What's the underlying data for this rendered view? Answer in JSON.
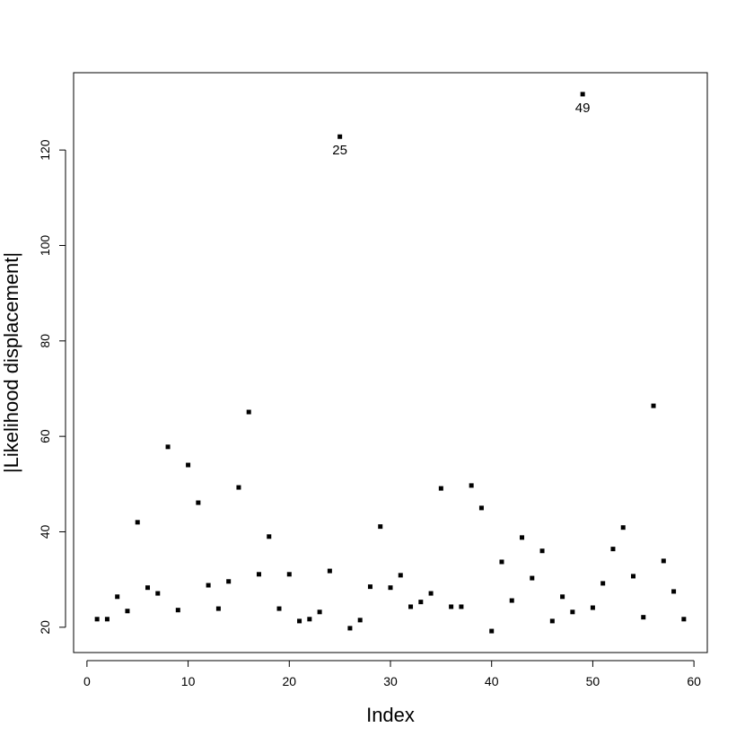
{
  "chart_data": {
    "type": "scatter",
    "xlabel": "Index",
    "ylabel": "|Likelihood displacement|",
    "x": [
      1,
      2,
      3,
      4,
      5,
      6,
      7,
      8,
      9,
      10,
      11,
      12,
      13,
      14,
      15,
      16,
      17,
      18,
      19,
      20,
      21,
      22,
      23,
      24,
      25,
      26,
      27,
      28,
      29,
      30,
      31,
      32,
      33,
      34,
      35,
      36,
      37,
      38,
      39,
      40,
      41,
      42,
      43,
      44,
      45,
      46,
      47,
      48,
      49,
      50,
      51,
      52,
      53,
      54,
      55,
      56,
      57,
      58,
      59
    ],
    "values": [
      21.7,
      21.7,
      26.4,
      23.4,
      42.0,
      28.3,
      27.1,
      57.8,
      23.6,
      54.0,
      46.1,
      28.8,
      23.9,
      29.6,
      49.3,
      65.1,
      31.1,
      39.0,
      23.9,
      31.1,
      21.3,
      21.7,
      23.2,
      31.8,
      122.8,
      19.8,
      21.5,
      28.5,
      41.1,
      28.3,
      30.9,
      24.3,
      25.3,
      27.1,
      49.1,
      24.3,
      24.3,
      49.7,
      45.0,
      19.2,
      33.7,
      25.6,
      38.8,
      30.3,
      36.0,
      21.3,
      26.4,
      23.2,
      131.7,
      24.1,
      29.2,
      36.4,
      40.9,
      30.7,
      22.1,
      66.4,
      33.9,
      27.5,
      21.7
    ],
    "color": "#000000",
    "xlim": [
      -1.32,
      61.32
    ],
    "ylim": [
      14.7,
      136.2
    ],
    "xticks": [
      0,
      10,
      20,
      30,
      40,
      50,
      60
    ],
    "yticks": [
      20,
      40,
      60,
      80,
      100,
      120
    ],
    "annotations": [
      {
        "x": 25,
        "text": "25"
      },
      {
        "x": 49,
        "text": "49"
      }
    ]
  }
}
